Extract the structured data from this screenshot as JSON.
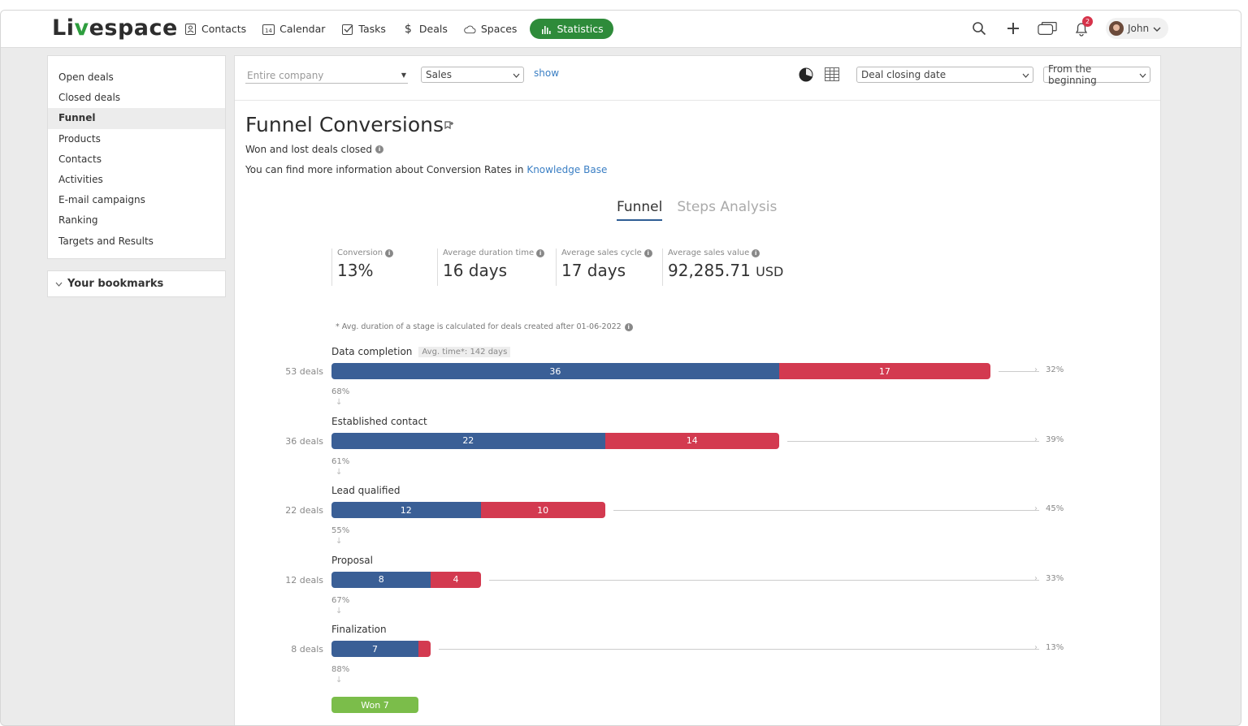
{
  "app": {
    "logo_pre": "Li",
    "logo_v": "v",
    "logo_post": "espace"
  },
  "nav": [
    {
      "label": "Contacts",
      "icon": "contacts-icon"
    },
    {
      "label": "Calendar",
      "icon": "calendar-icon"
    },
    {
      "label": "Tasks",
      "icon": "tasks-icon"
    },
    {
      "label": "Deals",
      "icon": "dollar-icon"
    },
    {
      "label": "Spaces",
      "icon": "cloud-icon"
    },
    {
      "label": "Statistics",
      "icon": "bar-chart-icon",
      "active": true
    }
  ],
  "calendar_day": "14",
  "header": {
    "notifications_count": "2",
    "user_name": "John"
  },
  "sidebar": {
    "items": [
      "Open deals",
      "Closed deals",
      "Funnel",
      "Products",
      "Contacts",
      "Activities",
      "E-mail campaigns",
      "Ranking",
      "Targets and Results"
    ],
    "active_index": 2,
    "bookmarks_label": "Your bookmarks"
  },
  "filters": {
    "company": "Entire company",
    "pipeline": "Sales",
    "show_label": "show",
    "date_field": "Deal closing date",
    "period": "From the beginning"
  },
  "page": {
    "title": "Funnel Conversions",
    "subtitle": "Won and lost deals closed",
    "info_text": "You can find more information about Conversion Rates in",
    "info_link": "Knowledge Base"
  },
  "tabs": [
    {
      "label": "Funnel",
      "active": true
    },
    {
      "label": "Steps Analysis",
      "active": false
    }
  ],
  "stats": [
    {
      "label": "Conversion",
      "value": "13%",
      "unit": ""
    },
    {
      "label": "Average duration time",
      "value": "16 days",
      "unit": ""
    },
    {
      "label": "Average sales cycle",
      "value": "17 days",
      "unit": ""
    },
    {
      "label": "Average sales value",
      "value": "92,285.71",
      "unit": "USD"
    }
  ],
  "note": "* Avg. duration of a stage is calculated for deals created after 01-06-2022",
  "funnel": {
    "stages": [
      {
        "name": "Data completion",
        "avg": "Avg. time*: 142 days",
        "deals": "53 deals",
        "won": 36,
        "lost": 17,
        "total": 53,
        "right_pct": "32%",
        "down_pct": "68%"
      },
      {
        "name": "Established contact",
        "avg": "",
        "deals": "36 deals",
        "won": 22,
        "lost": 14,
        "total": 36,
        "right_pct": "39%",
        "down_pct": "61%"
      },
      {
        "name": "Lead qualified",
        "avg": "",
        "deals": "22 deals",
        "won": 12,
        "lost": 10,
        "total": 22,
        "right_pct": "45%",
        "down_pct": "55%"
      },
      {
        "name": "Proposal",
        "avg": "",
        "deals": "12 deals",
        "won": 8,
        "lost": 4,
        "total": 12,
        "right_pct": "33%",
        "down_pct": "67%"
      },
      {
        "name": "Finalization",
        "avg": "",
        "deals": "8 deals",
        "won": 7,
        "lost": 1,
        "total": 8,
        "right_pct": "13%",
        "down_pct": "88%"
      }
    ],
    "won_label": "Won 7",
    "colors": {
      "won": "#3a5f96",
      "lost": "#d33a50",
      "final": "#7bbd4a"
    }
  }
}
